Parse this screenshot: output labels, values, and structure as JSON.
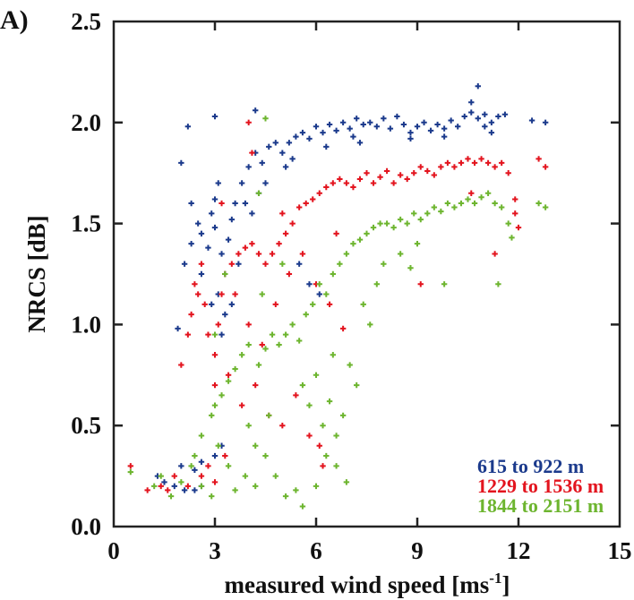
{
  "chart_data": {
    "type": "scatter",
    "panel_label": "A)",
    "title": "",
    "xlabel": "measured wind speed [ms",
    "xlabel_superscript": "-1",
    "xlabel_suffix": "]",
    "ylabel": "NRCS [dB]",
    "xlim": [
      0,
      15
    ],
    "ylim": [
      0.0,
      2.5
    ],
    "xticks": [
      0,
      3,
      6,
      9,
      12,
      15
    ],
    "xtick_labels": [
      "0",
      "3",
      "6",
      "9",
      "12",
      "15"
    ],
    "yticks": [
      0.0,
      0.5,
      1.0,
      1.5,
      2.0,
      2.5
    ],
    "ytick_labels": [
      "0.0",
      "0.5",
      "1.0",
      "1.5",
      "2.0",
      "2.5"
    ],
    "grid": false,
    "legend_placement": "bottom-right",
    "marker": "plus",
    "series": [
      {
        "name": "615 to 922 m",
        "color": "#1b3a8c",
        "points": [
          [
            1.3,
            0.25
          ],
          [
            1.5,
            0.22
          ],
          [
            1.8,
            0.2
          ],
          [
            2.1,
            0.18
          ],
          [
            2.0,
            0.3
          ],
          [
            2.4,
            0.28
          ],
          [
            2.6,
            0.32
          ],
          [
            3.0,
            0.35
          ],
          [
            3.2,
            0.4
          ],
          [
            2.4,
            0.18
          ],
          [
            2.6,
            0.2
          ],
          [
            1.9,
            0.98
          ],
          [
            2.2,
            1.98
          ],
          [
            3.0,
            2.03
          ],
          [
            4.2,
            2.06
          ],
          [
            2.0,
            1.8
          ],
          [
            2.3,
            1.6
          ],
          [
            2.1,
            1.3
          ],
          [
            2.3,
            1.4
          ],
          [
            2.5,
            1.5
          ],
          [
            2.6,
            1.45
          ],
          [
            2.8,
            1.38
          ],
          [
            2.9,
            1.55
          ],
          [
            3.0,
            1.62
          ],
          [
            3.1,
            1.7
          ],
          [
            3.0,
            1.48
          ],
          [
            3.2,
            1.35
          ],
          [
            3.3,
            1.25
          ],
          [
            3.1,
            1.15
          ],
          [
            3.4,
            1.42
          ],
          [
            3.5,
            1.52
          ],
          [
            3.6,
            1.6
          ],
          [
            3.8,
            1.7
          ],
          [
            4.0,
            1.78
          ],
          [
            4.2,
            1.85
          ],
          [
            4.4,
            1.8
          ],
          [
            4.6,
            1.88
          ],
          [
            4.8,
            1.9
          ],
          [
            5.0,
            1.85
          ],
          [
            5.2,
            1.9
          ],
          [
            5.4,
            1.93
          ],
          [
            5.6,
            1.95
          ],
          [
            5.8,
            1.92
          ],
          [
            6.0,
            1.98
          ],
          [
            6.2,
            1.95
          ],
          [
            6.4,
            1.99
          ],
          [
            6.6,
            1.96
          ],
          [
            6.8,
            2.0
          ],
          [
            7.0,
            1.97
          ],
          [
            7.2,
            2.02
          ],
          [
            7.4,
            1.99
          ],
          [
            7.6,
            2.0
          ],
          [
            7.8,
            1.98
          ],
          [
            8.0,
            2.02
          ],
          [
            8.2,
            1.97
          ],
          [
            8.4,
            2.03
          ],
          [
            8.6,
            1.99
          ],
          [
            8.8,
            1.95
          ],
          [
            9.0,
            1.98
          ],
          [
            9.2,
            2.0
          ],
          [
            9.4,
            1.96
          ],
          [
            9.6,
            1.99
          ],
          [
            9.8,
            1.97
          ],
          [
            10.0,
            2.01
          ],
          [
            10.2,
            1.98
          ],
          [
            10.4,
            2.03
          ],
          [
            10.6,
            2.05
          ],
          [
            10.8,
            2.02
          ],
          [
            11.0,
            2.04
          ],
          [
            11.2,
            2.0
          ],
          [
            10.8,
            2.18
          ],
          [
            10.6,
            2.1
          ],
          [
            11.4,
            2.03
          ],
          [
            11.6,
            2.04
          ],
          [
            12.4,
            2.01
          ],
          [
            12.8,
            2.0
          ],
          [
            11.0,
            1.98
          ],
          [
            11.2,
            1.95
          ],
          [
            4.5,
            1.7
          ],
          [
            4.3,
            1.65
          ],
          [
            4.1,
            1.55
          ],
          [
            3.9,
            1.6
          ],
          [
            5.3,
            1.82
          ],
          [
            5.1,
            1.78
          ],
          [
            6.3,
            1.88
          ],
          [
            7.1,
            1.93
          ],
          [
            3.7,
            1.3
          ],
          [
            3.5,
            1.1
          ],
          [
            3.3,
            1.05
          ],
          [
            3.2,
            0.95
          ],
          [
            5.8,
            1.2
          ],
          [
            6.1,
            1.15
          ],
          [
            5.5,
            1.3
          ],
          [
            8.8,
            1.92
          ],
          [
            9.8,
            1.93
          ],
          [
            7.3,
            1.9
          ],
          [
            2.9,
            1.1
          ],
          [
            2.6,
            1.25
          ]
        ]
      },
      {
        "name": "1229 to 1536 m",
        "color": "#e3141e",
        "points": [
          [
            0.5,
            0.3
          ],
          [
            1.4,
            0.2
          ],
          [
            1.6,
            0.18
          ],
          [
            1.8,
            0.25
          ],
          [
            2.2,
            0.2
          ],
          [
            2.6,
            0.25
          ],
          [
            3.0,
            0.22
          ],
          [
            2.8,
            0.3
          ],
          [
            3.3,
            0.35
          ],
          [
            1.0,
            0.18
          ],
          [
            2.0,
            0.8
          ],
          [
            2.2,
            0.95
          ],
          [
            2.3,
            1.05
          ],
          [
            2.5,
            1.15
          ],
          [
            2.7,
            1.1
          ],
          [
            2.8,
            0.95
          ],
          [
            3.0,
            0.85
          ],
          [
            3.1,
            1.0
          ],
          [
            3.2,
            1.15
          ],
          [
            3.3,
            1.25
          ],
          [
            3.5,
            1.3
          ],
          [
            3.7,
            1.35
          ],
          [
            3.9,
            1.38
          ],
          [
            4.1,
            1.4
          ],
          [
            4.3,
            1.35
          ],
          [
            4.5,
            1.3
          ],
          [
            4.7,
            1.35
          ],
          [
            4.9,
            1.4
          ],
          [
            5.1,
            1.45
          ],
          [
            5.3,
            1.5
          ],
          [
            5.5,
            1.58
          ],
          [
            5.7,
            1.6
          ],
          [
            5.9,
            1.62
          ],
          [
            6.1,
            1.65
          ],
          [
            6.3,
            1.68
          ],
          [
            6.5,
            1.7
          ],
          [
            6.7,
            1.72
          ],
          [
            6.9,
            1.7
          ],
          [
            7.1,
            1.68
          ],
          [
            7.3,
            1.72
          ],
          [
            7.5,
            1.75
          ],
          [
            7.7,
            1.7
          ],
          [
            7.9,
            1.73
          ],
          [
            8.1,
            1.76
          ],
          [
            8.3,
            1.7
          ],
          [
            8.5,
            1.74
          ],
          [
            8.7,
            1.72
          ],
          [
            8.9,
            1.75
          ],
          [
            9.1,
            1.78
          ],
          [
            9.3,
            1.76
          ],
          [
            9.5,
            1.74
          ],
          [
            9.7,
            1.78
          ],
          [
            9.9,
            1.8
          ],
          [
            10.1,
            1.78
          ],
          [
            10.3,
            1.8
          ],
          [
            10.5,
            1.82
          ],
          [
            10.7,
            1.8
          ],
          [
            10.9,
            1.82
          ],
          [
            11.1,
            1.8
          ],
          [
            11.3,
            1.78
          ],
          [
            11.5,
            1.8
          ],
          [
            11.7,
            1.75
          ],
          [
            11.9,
            1.62
          ],
          [
            11.9,
            1.55
          ],
          [
            12.0,
            1.48
          ],
          [
            12.6,
            1.82
          ],
          [
            12.8,
            1.78
          ],
          [
            10.6,
            1.65
          ],
          [
            11.3,
            1.35
          ],
          [
            9.1,
            1.2
          ],
          [
            3.0,
            0.7
          ],
          [
            3.4,
            0.75
          ],
          [
            3.8,
            0.6
          ],
          [
            4.2,
            0.7
          ],
          [
            4.6,
            0.55
          ],
          [
            5.0,
            0.5
          ],
          [
            5.4,
            0.65
          ],
          [
            5.8,
            0.45
          ],
          [
            6.1,
            0.4
          ],
          [
            6.2,
            0.3
          ],
          [
            4.0,
            1.0
          ],
          [
            4.4,
            0.9
          ],
          [
            4.8,
            1.1
          ],
          [
            5.2,
            1.25
          ],
          [
            5.6,
            1.35
          ],
          [
            6.0,
            1.2
          ],
          [
            6.4,
            1.1
          ],
          [
            6.8,
            0.98
          ],
          [
            4.0,
            2.0
          ],
          [
            4.1,
            1.85
          ],
          [
            2.4,
            1.2
          ],
          [
            2.6,
            1.3
          ],
          [
            3.2,
            1.6
          ],
          [
            3.6,
            1.15
          ],
          [
            5.0,
            1.55
          ],
          [
            6.6,
            1.45
          ]
        ]
      },
      {
        "name": "1844 to 2151 m",
        "color": "#6db52f",
        "points": [
          [
            0.5,
            0.27
          ],
          [
            1.2,
            0.2
          ],
          [
            1.4,
            0.25
          ],
          [
            1.7,
            0.15
          ],
          [
            2.0,
            0.22
          ],
          [
            2.3,
            0.3
          ],
          [
            2.6,
            0.2
          ],
          [
            2.9,
            0.15
          ],
          [
            3.1,
            0.4
          ],
          [
            3.4,
            0.3
          ],
          [
            3.6,
            0.18
          ],
          [
            3.9,
            0.25
          ],
          [
            4.2,
            0.2
          ],
          [
            4.5,
            0.35
          ],
          [
            4.8,
            0.25
          ],
          [
            5.1,
            0.15
          ],
          [
            5.4,
            0.18
          ],
          [
            5.6,
            0.1
          ],
          [
            6.0,
            0.2
          ],
          [
            6.3,
            0.35
          ],
          [
            6.6,
            0.3
          ],
          [
            6.9,
            0.22
          ],
          [
            2.6,
            0.45
          ],
          [
            2.9,
            0.55
          ],
          [
            3.0,
            0.6
          ],
          [
            3.2,
            0.65
          ],
          [
            3.4,
            0.72
          ],
          [
            3.6,
            0.78
          ],
          [
            3.8,
            0.85
          ],
          [
            4.0,
            0.9
          ],
          [
            4.3,
            0.8
          ],
          [
            4.5,
            0.88
          ],
          [
            4.7,
            0.95
          ],
          [
            4.9,
            0.9
          ],
          [
            5.1,
            0.95
          ],
          [
            5.3,
            1.0
          ],
          [
            5.5,
            0.92
          ],
          [
            5.7,
            1.05
          ],
          [
            5.9,
            1.1
          ],
          [
            6.1,
            1.2
          ],
          [
            6.3,
            1.15
          ],
          [
            6.5,
            1.25
          ],
          [
            6.7,
            1.3
          ],
          [
            6.9,
            1.35
          ],
          [
            7.1,
            1.4
          ],
          [
            7.3,
            1.42
          ],
          [
            7.5,
            1.45
          ],
          [
            7.7,
            1.48
          ],
          [
            7.9,
            1.5
          ],
          [
            8.1,
            1.5
          ],
          [
            8.3,
            1.48
          ],
          [
            8.5,
            1.52
          ],
          [
            8.7,
            1.5
          ],
          [
            8.9,
            1.55
          ],
          [
            9.1,
            1.52
          ],
          [
            9.3,
            1.55
          ],
          [
            9.5,
            1.58
          ],
          [
            9.7,
            1.56
          ],
          [
            9.9,
            1.6
          ],
          [
            10.1,
            1.58
          ],
          [
            10.3,
            1.6
          ],
          [
            10.5,
            1.62
          ],
          [
            10.7,
            1.6
          ],
          [
            10.9,
            1.63
          ],
          [
            11.1,
            1.65
          ],
          [
            11.3,
            1.6
          ],
          [
            11.5,
            1.58
          ],
          [
            11.7,
            1.5
          ],
          [
            11.8,
            1.43
          ],
          [
            12.6,
            1.6
          ],
          [
            12.8,
            1.58
          ],
          [
            9.8,
            1.2
          ],
          [
            11.4,
            1.2
          ],
          [
            7.4,
            1.1
          ],
          [
            7.6,
            1.0
          ],
          [
            7.8,
            1.2
          ],
          [
            8.0,
            1.3
          ],
          [
            8.5,
            1.35
          ],
          [
            8.8,
            1.28
          ],
          [
            9.0,
            1.4
          ],
          [
            5.6,
            0.7
          ],
          [
            5.8,
            0.6
          ],
          [
            6.0,
            0.75
          ],
          [
            6.2,
            0.5
          ],
          [
            6.4,
            0.62
          ],
          [
            6.6,
            0.45
          ],
          [
            6.8,
            0.55
          ],
          [
            7.0,
            0.8
          ],
          [
            7.2,
            0.7
          ],
          [
            4.0,
            0.5
          ],
          [
            4.2,
            0.4
          ],
          [
            4.6,
            0.55
          ],
          [
            3.3,
            1.25
          ],
          [
            4.4,
            1.15
          ],
          [
            5.0,
            1.3
          ],
          [
            4.5,
            2.02
          ],
          [
            4.3,
            1.65
          ],
          [
            2.4,
            0.35
          ],
          [
            3.0,
            0.95
          ],
          [
            6.5,
            0.85
          ]
        ]
      }
    ]
  }
}
